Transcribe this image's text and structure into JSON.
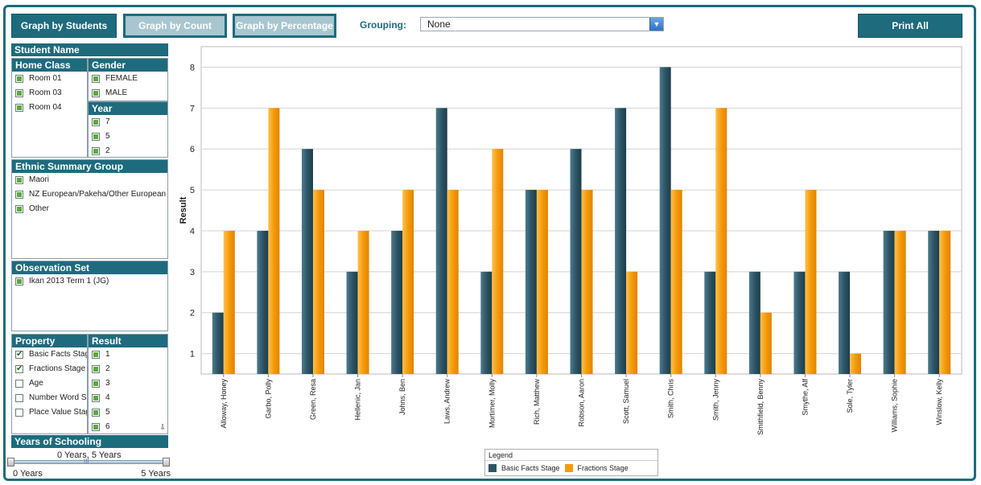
{
  "toolbar": {
    "graph_by_students": "Graph by Students",
    "graph_by_count": "Graph by Count",
    "graph_by_percentage": "Graph by Percentage",
    "grouping_label": "Grouping:",
    "grouping_value": "None",
    "print_all": "Print All"
  },
  "filters": {
    "student_name": "Student Name",
    "home_class": {
      "title": "Home Class",
      "items": [
        "Room 01",
        "Room 03",
        "Room 04"
      ]
    },
    "gender": {
      "title": "Gender",
      "items": [
        "FEMALE",
        "MALE"
      ]
    },
    "year": {
      "title": "Year",
      "items": [
        "7",
        "5",
        "2"
      ]
    },
    "ethnic": {
      "title": "Ethnic Summary Group",
      "items": [
        "Maori",
        "NZ European/Pakeha/Other European",
        "Other"
      ]
    },
    "observation": {
      "title": "Observation Set",
      "items": [
        "Ikan 2013 Term 1 (JG)"
      ]
    },
    "property": {
      "title": "Property",
      "items": [
        {
          "label": "Basic Facts Stage",
          "checked": true
        },
        {
          "label": "Fractions Stage",
          "checked": true
        },
        {
          "label": "Age",
          "checked": false
        },
        {
          "label": "Number Word Sequence",
          "checked": false
        },
        {
          "label": "Place Value Stage",
          "checked": false
        }
      ]
    },
    "result": {
      "title": "Result",
      "items": [
        "1",
        "2",
        "3",
        "4",
        "5",
        "6"
      ]
    },
    "years_of_schooling": {
      "title": "Years of Schooling",
      "range_text": "0 Years, 5 Years",
      "min_label": "0 Years",
      "max_label": "5 Years",
      "grip": "III"
    }
  },
  "colors": {
    "accent": "#1e6b7e",
    "series1": "#2e5566",
    "series2": "#f59a0c"
  },
  "chart_data": {
    "type": "bar",
    "ylabel": "Result",
    "ylim": [
      0.5,
      8.5
    ],
    "yticks": [
      1,
      2,
      3,
      4,
      5,
      6,
      7,
      8
    ],
    "grid": true,
    "legend_title": "Legend",
    "legend_position": "bottom-center",
    "categories": [
      "Alloway, Honey",
      "Garbo, Polly",
      "Green, Resa",
      "Hellenic, Jan",
      "Johns, Ben",
      "Laws, Andrew",
      "Mortimer, Molly",
      "Rich, Matthew",
      "Robson, Aaron",
      "Scott, Samuel",
      "Smith, Chris",
      "Smith, Jenny",
      "Smithfield, Benny",
      "Smythe, Alf",
      "Sole, Tyler",
      "Williams, Sophie",
      "Winslow, Kelly"
    ],
    "series": [
      {
        "name": "Basic Facts Stage",
        "values": [
          2,
          4,
          6,
          3,
          4,
          7,
          3,
          5,
          6,
          7,
          8,
          3,
          3,
          3,
          3,
          4,
          4
        ]
      },
      {
        "name": "Fractions Stage",
        "values": [
          4,
          7,
          5,
          4,
          5,
          5,
          6,
          5,
          5,
          3,
          5,
          7,
          2,
          5,
          1,
          4,
          4
        ]
      }
    ]
  }
}
